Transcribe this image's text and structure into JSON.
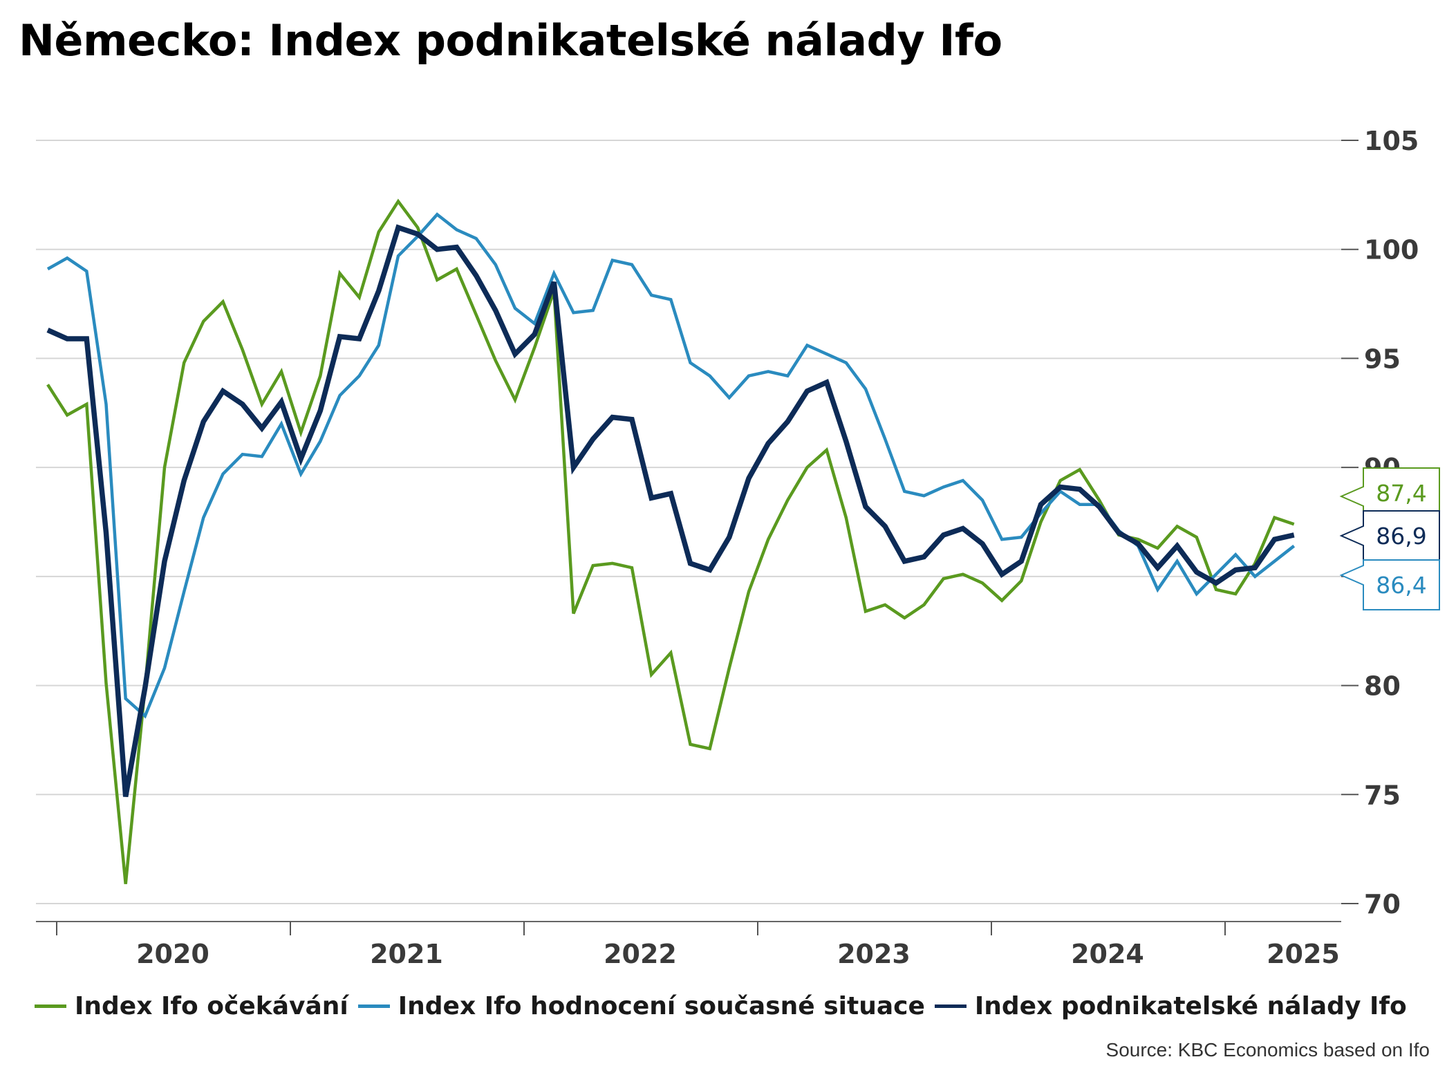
{
  "title": "Německo: Index podnikatelské nálady Ifo",
  "source": "Source: KBC Economics based on Ifo",
  "colors": {
    "expectations": "#5a9a1f",
    "current": "#2a8bbf",
    "climate": "#0d2b57",
    "grid": "#d6d6d6"
  },
  "legend": [
    {
      "label": "Index Ifo očekávání",
      "color": "#5a9a1f"
    },
    {
      "label": "Index Ifo hodnocení současné situace",
      "color": "#2a8bbf"
    },
    {
      "label": "Index podnikatelské nálady Ifo",
      "color": "#0d2b57"
    }
  ],
  "chart_data": {
    "type": "line",
    "title": "Německo: Index podnikatelské nálady Ifo",
    "ylim": [
      69,
      106
    ],
    "yticks": [
      70,
      75,
      80,
      85,
      90,
      95,
      100,
      105
    ],
    "xticks": [
      "2020",
      "2021",
      "2022",
      "2023",
      "2024",
      "2025"
    ],
    "x_start": "2020-01",
    "x_end": "2025-04",
    "series": [
      {
        "name": "Index Ifo očekávání",
        "color": "#5a9a1f",
        "last_label": "87,4",
        "values": [
          93.8,
          92.4,
          92.9,
          80.1,
          70.9,
          79.9,
          90.0,
          94.8,
          96.7,
          97.6,
          95.4,
          92.9,
          94.4,
          91.6,
          94.2,
          98.9,
          97.8,
          100.8,
          102.2,
          101.0,
          98.6,
          99.1,
          97.0,
          94.9,
          93.1,
          95.5,
          98.1,
          83.3,
          85.5,
          85.6,
          85.4,
          80.5,
          81.5,
          77.3,
          77.1,
          80.8,
          84.3,
          86.7,
          88.5,
          90.0,
          90.8,
          87.7,
          83.4,
          83.7,
          83.1,
          83.7,
          84.9,
          85.1,
          84.7,
          83.9,
          84.8,
          87.5,
          89.4,
          89.9,
          88.5,
          86.9,
          86.7,
          86.3,
          87.3,
          86.8,
          84.4,
          84.2,
          85.6,
          87.7,
          87.4
        ]
      },
      {
        "name": "Index Ifo hodnocení současné situace",
        "color": "#2a8bbf",
        "last_label": "86,4",
        "values": [
          99.1,
          99.6,
          99.0,
          92.9,
          79.4,
          78.6,
          80.8,
          84.3,
          87.7,
          89.7,
          90.6,
          90.5,
          92.0,
          89.7,
          91.2,
          93.3,
          94.2,
          95.6,
          99.7,
          100.6,
          101.6,
          100.9,
          100.5,
          99.3,
          97.3,
          96.6,
          98.9,
          97.1,
          97.2,
          99.5,
          99.3,
          97.9,
          97.7,
          94.8,
          94.2,
          93.2,
          94.2,
          94.4,
          94.2,
          95.6,
          95.2,
          94.8,
          93.6,
          91.3,
          88.9,
          88.7,
          89.1,
          89.4,
          88.5,
          86.7,
          86.8,
          87.9,
          88.9,
          88.3,
          88.3,
          87.1,
          86.4,
          84.4,
          85.7,
          84.2,
          85.1,
          86.0,
          85.0,
          85.7,
          86.4
        ]
      },
      {
        "name": "Index podnikatelské nálady Ifo",
        "color": "#0d2b57",
        "last_label": "86,9",
        "values": [
          96.3,
          95.9,
          95.9,
          87.0,
          74.9,
          79.9,
          85.7,
          89.4,
          92.1,
          93.5,
          92.9,
          91.8,
          93.0,
          90.4,
          92.6,
          96.0,
          95.9,
          98.1,
          101.0,
          100.7,
          100.0,
          100.1,
          98.8,
          97.2,
          95.2,
          96.1,
          98.5,
          90.0,
          91.3,
          92.3,
          92.2,
          88.6,
          88.8,
          85.6,
          85.3,
          86.8,
          89.5,
          91.1,
          92.1,
          93.5,
          93.9,
          91.2,
          88.2,
          87.3,
          85.7,
          85.9,
          86.9,
          87.2,
          86.5,
          85.1,
          85.7,
          88.3,
          89.1,
          89.0,
          88.2,
          87.0,
          86.5,
          85.4,
          86.4,
          85.2,
          84.7,
          85.3,
          85.4,
          86.7,
          86.9
        ]
      }
    ]
  }
}
